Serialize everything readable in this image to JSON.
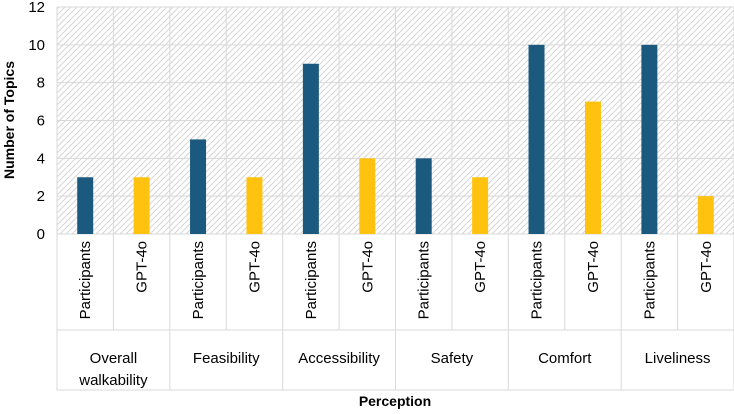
{
  "chart_data": {
    "type": "bar",
    "title": "",
    "xlabel": "Perception",
    "ylabel": "Number of Topics",
    "ylim": [
      0,
      12
    ],
    "yticks": [
      0,
      2,
      4,
      6,
      8,
      10,
      12
    ],
    "groups": [
      {
        "label": "Overall walkability",
        "label_lines": [
          "Overall",
          "walkability"
        ]
      },
      {
        "label": "Feasibility",
        "label_lines": [
          "Feasibility"
        ]
      },
      {
        "label": "Accessibility",
        "label_lines": [
          "Accessibility"
        ]
      },
      {
        "label": "Safety",
        "label_lines": [
          "Safety"
        ]
      },
      {
        "label": "Comfort",
        "label_lines": [
          "Comfort"
        ]
      },
      {
        "label": "Liveliness",
        "label_lines": [
          "Liveliness"
        ]
      }
    ],
    "series": [
      {
        "name": "Participants",
        "color": "#1b5a7e",
        "values": [
          3,
          5,
          9,
          4,
          10,
          10
        ]
      },
      {
        "name": "GPT-4o",
        "color": "#ffc20e",
        "values": [
          3,
          3,
          4,
          3,
          7,
          2
        ]
      }
    ],
    "grid": true
  }
}
